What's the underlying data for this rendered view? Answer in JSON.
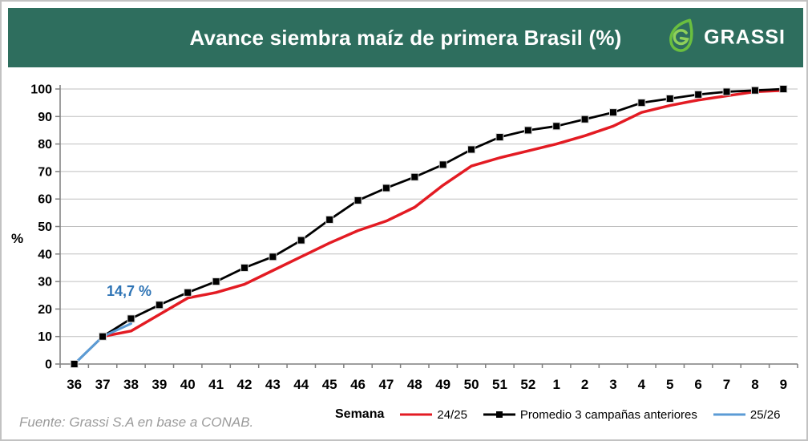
{
  "header": {
    "title": "Avance siembra maíz de primera Brasil (%)",
    "logo_text": "GRASSI",
    "background_color": "#2e6e5e",
    "logo_green": "#6abf3f"
  },
  "footer": {
    "source": "Fuente: Grassi S.A en base a CONAB."
  },
  "chart_data": {
    "type": "line",
    "title": "Avance siembra maíz de primera Brasil (%)",
    "xlabel": "Semana",
    "ylabel": "%",
    "ylim": [
      0,
      100
    ],
    "ytick_step": 10,
    "grid": "horizontal",
    "legend_position": "bottom",
    "categories": [
      "36",
      "37",
      "38",
      "39",
      "40",
      "41",
      "42",
      "43",
      "44",
      "45",
      "46",
      "47",
      "48",
      "49",
      "50",
      "51",
      "52",
      "1",
      "2",
      "3",
      "4",
      "5",
      "6",
      "7",
      "8",
      "9"
    ],
    "series": [
      {
        "name": "24/25",
        "color": "#e31b23",
        "marker": "none",
        "line_width": 3.5,
        "values": [
          null,
          10,
          12,
          18,
          24,
          26,
          29,
          34,
          39,
          44,
          48.5,
          52,
          57,
          65,
          72,
          75,
          77.5,
          80,
          83,
          86.5,
          91.5,
          94,
          96,
          97.5,
          99,
          99.5
        ]
      },
      {
        "name": "Promedio 3 campañas anteriores",
        "color": "#000000",
        "marker": "square",
        "line_width": 2.8,
        "values": [
          0,
          10,
          16.5,
          21.5,
          26,
          30,
          35,
          39,
          45,
          52.5,
          59.5,
          64,
          68,
          72.5,
          78,
          82.5,
          85,
          86.5,
          89,
          91.5,
          95,
          96.5,
          98,
          99,
          99.5,
          100
        ]
      },
      {
        "name": "25/26",
        "color": "#5b9bd5",
        "marker": "none",
        "line_width": 3,
        "values": [
          0,
          10,
          14.7,
          null,
          null,
          null,
          null,
          null,
          null,
          null,
          null,
          null,
          null,
          null,
          null,
          null,
          null,
          null,
          null,
          null,
          null,
          null,
          null,
          null,
          null,
          null
        ]
      }
    ],
    "annotation": {
      "text": "14,7 %",
      "series": "25/26",
      "at_category": "38",
      "value": 14.7,
      "color": "#2e74b5"
    },
    "colors": {
      "gridline": "#bfbfbf",
      "axis": "#7f7f7f",
      "tick_label": "#000000"
    }
  }
}
